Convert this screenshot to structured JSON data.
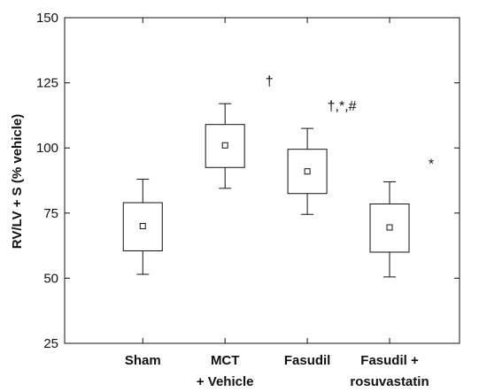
{
  "chart_data": {
    "type": "box",
    "ylabel": "RV/LV + S (% vehicle)",
    "xlabel": "",
    "ylim": [
      25,
      150
    ],
    "yticks": [
      25,
      50,
      75,
      100,
      125,
      150
    ],
    "ytick_labels": [
      "25",
      "50",
      "75",
      "100",
      "125",
      "150"
    ],
    "categories": [
      {
        "line1": "Sham",
        "line2": ""
      },
      {
        "line1": "MCT",
        "line2": "+ Vehicle"
      },
      {
        "line1": "Fasudil",
        "line2": ""
      },
      {
        "line1": "Fasudil +",
        "line2": "rosuvastatin"
      }
    ],
    "boxes": [
      {
        "min": 51.5,
        "q1": 60.5,
        "mean": 70,
        "q3": 79,
        "max": 88,
        "annotation": ""
      },
      {
        "min": 84.5,
        "q1": 92.5,
        "mean": 101,
        "q3": 109,
        "max": 117,
        "annotation": "†"
      },
      {
        "min": 74.5,
        "q1": 82.5,
        "mean": 91,
        "q3": 99.5,
        "max": 107.5,
        "annotation": "†,*,#"
      },
      {
        "min": 50.5,
        "q1": 60,
        "mean": 69.5,
        "q3": 78.5,
        "max": 87,
        "annotation": "*"
      }
    ],
    "grid": false
  }
}
